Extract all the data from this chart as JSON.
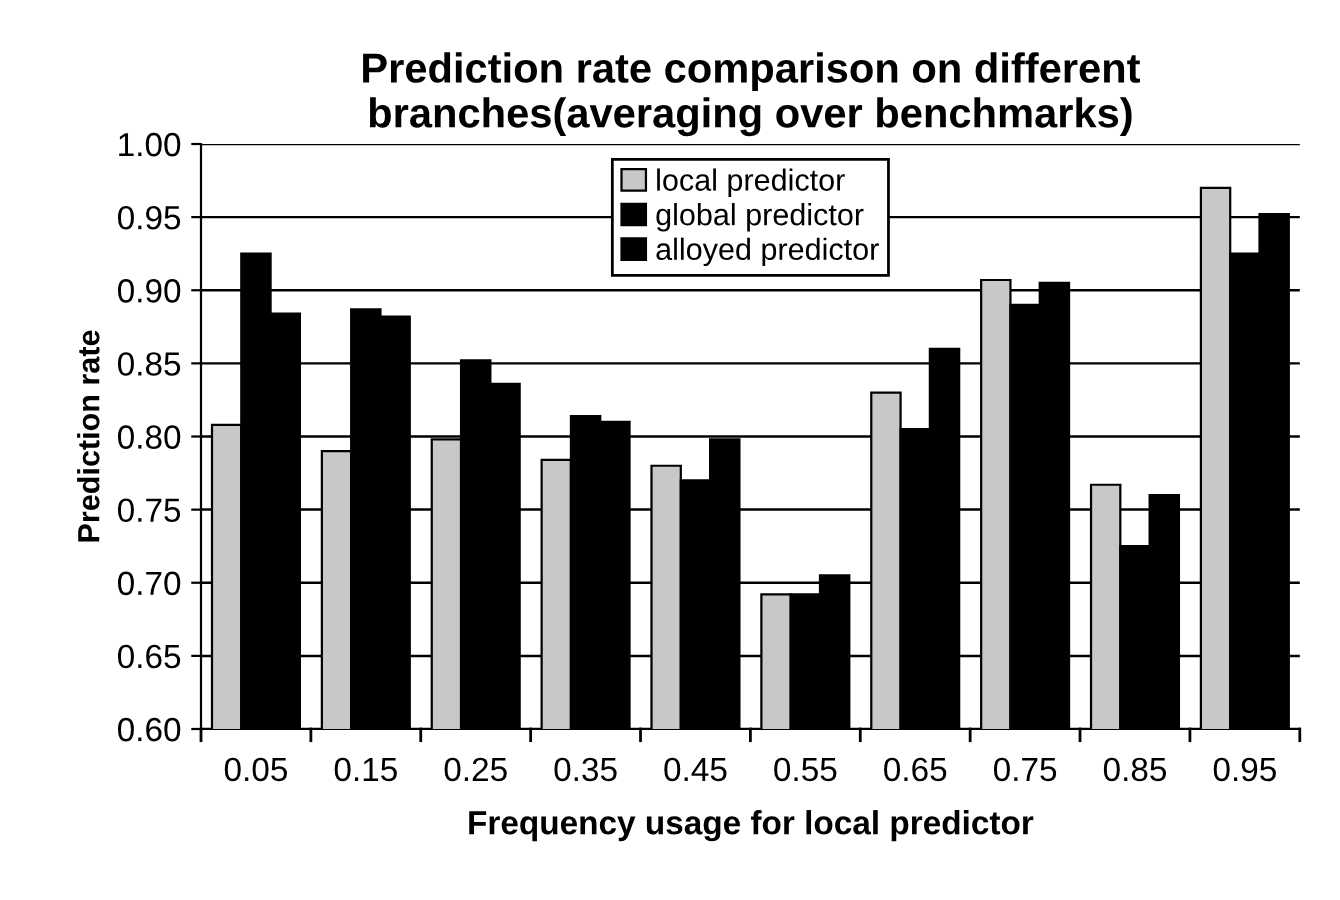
{
  "chart_data": {
    "type": "bar",
    "title": "Prediction rate comparison on different\nbranches(averaging over benchmarks)",
    "xlabel": "Frequency usage for local predictor",
    "ylabel": "Prediction rate",
    "categories": [
      "0.05",
      "0.15",
      "0.25",
      "0.35",
      "0.45",
      "0.55",
      "0.65",
      "0.75",
      "0.85",
      "0.95"
    ],
    "series": [
      {
        "name": "local predictor",
        "color": "#c8c8c8",
        "values": [
          0.808,
          0.79,
          0.798,
          0.784,
          0.78,
          0.692,
          0.83,
          0.907,
          0.767,
          0.97
        ]
      },
      {
        "name": "global predictor",
        "color": "#000000",
        "values": [
          0.925,
          0.887,
          0.852,
          0.814,
          0.77,
          0.692,
          0.805,
          0.89,
          0.725,
          0.925
        ]
      },
      {
        "name": "alloyed predictor",
        "color": "#000000",
        "values": [
          0.884,
          0.882,
          0.836,
          0.81,
          0.798,
          0.705,
          0.86,
          0.905,
          0.76,
          0.952
        ]
      }
    ],
    "ylim": [
      0.6,
      1.0
    ],
    "yticks": [
      {
        "value": 0.6,
        "label": "0.60"
      },
      {
        "value": 0.65,
        "label": "0.65"
      },
      {
        "value": 0.7,
        "label": "0.70"
      },
      {
        "value": 0.75,
        "label": "0.75"
      },
      {
        "value": 0.8,
        "label": "0.80"
      },
      {
        "value": 0.85,
        "label": "0.85"
      },
      {
        "value": 0.9,
        "label": "0.90"
      },
      {
        "value": 0.95,
        "label": "0.95"
      },
      {
        "value": 1.0,
        "label": "1.00"
      }
    ],
    "grid": "y",
    "legend": "top"
  }
}
